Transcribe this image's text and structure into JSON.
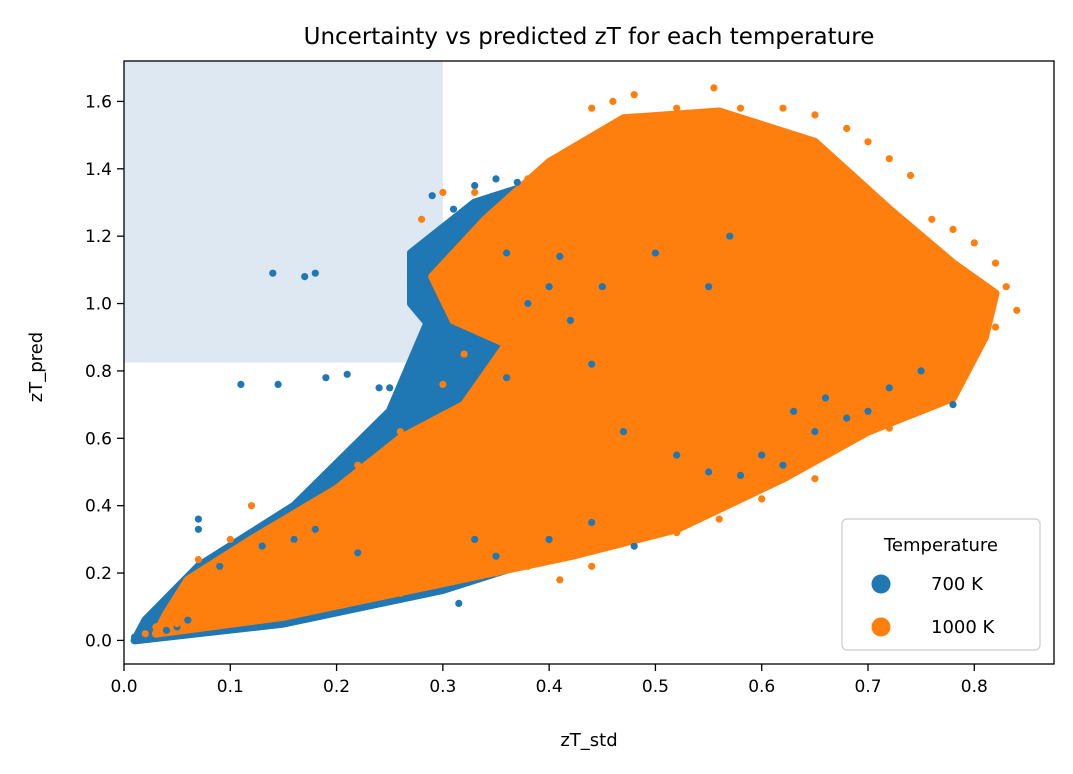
{
  "chart_data": {
    "type": "scatter",
    "title": "Uncertainty vs predicted zT for each temperature",
    "xlabel": "zT_std",
    "ylabel": "zT_pred",
    "xlim": [
      0.0,
      0.875
    ],
    "ylim": [
      -0.07,
      1.72
    ],
    "x_ticks": [
      "0.0",
      "0.1",
      "0.2",
      "0.3",
      "0.4",
      "0.5",
      "0.6",
      "0.7",
      "0.8"
    ],
    "y_ticks": [
      "0.0",
      "0.2",
      "0.4",
      "0.6",
      "0.8",
      "1.0",
      "1.2",
      "1.4",
      "1.6"
    ],
    "grid": false,
    "highlight_region": {
      "x": [
        0.0,
        0.3
      ],
      "y": [
        0.825,
        1.72
      ],
      "color": "#dde8f3"
    },
    "legend": {
      "title": "Temperature",
      "placement": "lower-right",
      "entries": [
        {
          "label": "700 K",
          "color": "#1f77b4"
        },
        {
          "label": "1000 K",
          "color": "#ff7f0e"
        }
      ]
    },
    "series": [
      {
        "name": "700 K",
        "color": "#1f77b4",
        "points": [
          [
            0.01,
            0.01
          ],
          [
            0.02,
            0.02
          ],
          [
            0.04,
            0.03
          ],
          [
            0.05,
            0.04
          ],
          [
            0.06,
            0.06
          ],
          [
            0.07,
            0.36
          ],
          [
            0.07,
            0.33
          ],
          [
            0.11,
            0.76
          ],
          [
            0.145,
            0.76
          ],
          [
            0.14,
            1.09
          ],
          [
            0.17,
            1.08
          ],
          [
            0.18,
            1.09
          ],
          [
            0.19,
            0.78
          ],
          [
            0.21,
            0.79
          ],
          [
            0.24,
            0.75
          ],
          [
            0.25,
            0.75
          ],
          [
            0.27,
            1.09
          ],
          [
            0.28,
            1.06
          ],
          [
            0.29,
            1.32
          ],
          [
            0.31,
            1.28
          ],
          [
            0.33,
            1.35
          ],
          [
            0.35,
            1.37
          ],
          [
            0.37,
            1.36
          ],
          [
            0.34,
            0.86
          ],
          [
            0.36,
            0.78
          ],
          [
            0.32,
            0.76
          ],
          [
            0.4,
            1.05
          ],
          [
            0.42,
            0.95
          ],
          [
            0.44,
            0.82
          ],
          [
            0.47,
            0.62
          ],
          [
            0.52,
            0.55
          ],
          [
            0.55,
            0.5
          ],
          [
            0.58,
            0.49
          ],
          [
            0.6,
            0.55
          ],
          [
            0.62,
            0.52
          ],
          [
            0.65,
            0.62
          ],
          [
            0.68,
            0.66
          ],
          [
            0.7,
            0.68
          ],
          [
            0.72,
            0.75
          ],
          [
            0.75,
            0.8
          ],
          [
            0.78,
            0.7
          ],
          [
            0.55,
            1.05
          ],
          [
            0.57,
            1.2
          ],
          [
            0.5,
            1.15
          ],
          [
            0.45,
            1.05
          ],
          [
            0.315,
            0.11
          ],
          [
            0.22,
            0.26
          ],
          [
            0.16,
            0.3
          ],
          [
            0.18,
            0.33
          ],
          [
            0.13,
            0.28
          ],
          [
            0.09,
            0.22
          ],
          [
            0.33,
            0.3
          ],
          [
            0.35,
            0.25
          ],
          [
            0.4,
            0.3
          ],
          [
            0.44,
            0.35
          ],
          [
            0.48,
            0.28
          ],
          [
            0.38,
            1.0
          ],
          [
            0.41,
            1.14
          ],
          [
            0.36,
            1.15
          ],
          [
            0.3,
            1.2
          ],
          [
            0.66,
            0.72
          ],
          [
            0.63,
            0.68
          ]
        ]
      },
      {
        "name": "1000 K",
        "color": "#ff7f0e",
        "points": [
          [
            0.02,
            0.02
          ],
          [
            0.03,
            0.04
          ],
          [
            0.05,
            0.05
          ],
          [
            0.07,
            0.24
          ],
          [
            0.09,
            0.24
          ],
          [
            0.12,
            0.4
          ],
          [
            0.1,
            0.3
          ],
          [
            0.16,
            0.28
          ],
          [
            0.19,
            0.36
          ],
          [
            0.22,
            0.52
          ],
          [
            0.24,
            0.53
          ],
          [
            0.26,
            0.62
          ],
          [
            0.28,
            0.6
          ],
          [
            0.31,
            0.67
          ],
          [
            0.35,
            0.71
          ],
          [
            0.3,
            0.76
          ],
          [
            0.32,
            0.85
          ],
          [
            0.33,
            1.33
          ],
          [
            0.3,
            1.33
          ],
          [
            0.28,
            1.25
          ],
          [
            0.35,
            1.22
          ],
          [
            0.38,
            1.37
          ],
          [
            0.4,
            1.4
          ],
          [
            0.42,
            1.45
          ],
          [
            0.44,
            1.58
          ],
          [
            0.46,
            1.6
          ],
          [
            0.48,
            1.62
          ],
          [
            0.5,
            1.55
          ],
          [
            0.52,
            1.58
          ],
          [
            0.555,
            1.64
          ],
          [
            0.58,
            1.58
          ],
          [
            0.62,
            1.58
          ],
          [
            0.65,
            1.56
          ],
          [
            0.68,
            1.52
          ],
          [
            0.7,
            1.48
          ],
          [
            0.72,
            1.43
          ],
          [
            0.74,
            1.38
          ],
          [
            0.76,
            1.25
          ],
          [
            0.78,
            1.22
          ],
          [
            0.8,
            1.18
          ],
          [
            0.82,
            1.12
          ],
          [
            0.83,
            1.05
          ],
          [
            0.84,
            0.98
          ],
          [
            0.82,
            0.93
          ],
          [
            0.8,
            0.85
          ],
          [
            0.78,
            0.8
          ],
          [
            0.76,
            0.75
          ],
          [
            0.74,
            0.68
          ],
          [
            0.72,
            0.63
          ],
          [
            0.7,
            0.62
          ],
          [
            0.68,
            0.6
          ],
          [
            0.65,
            0.48
          ],
          [
            0.6,
            0.42
          ],
          [
            0.56,
            0.36
          ],
          [
            0.52,
            0.32
          ],
          [
            0.48,
            0.3
          ],
          [
            0.44,
            0.22
          ],
          [
            0.41,
            0.18
          ],
          [
            0.38,
            0.22
          ],
          [
            0.35,
            0.2
          ],
          [
            0.3,
            0.17
          ],
          [
            0.26,
            0.14
          ]
        ]
      }
    ]
  }
}
